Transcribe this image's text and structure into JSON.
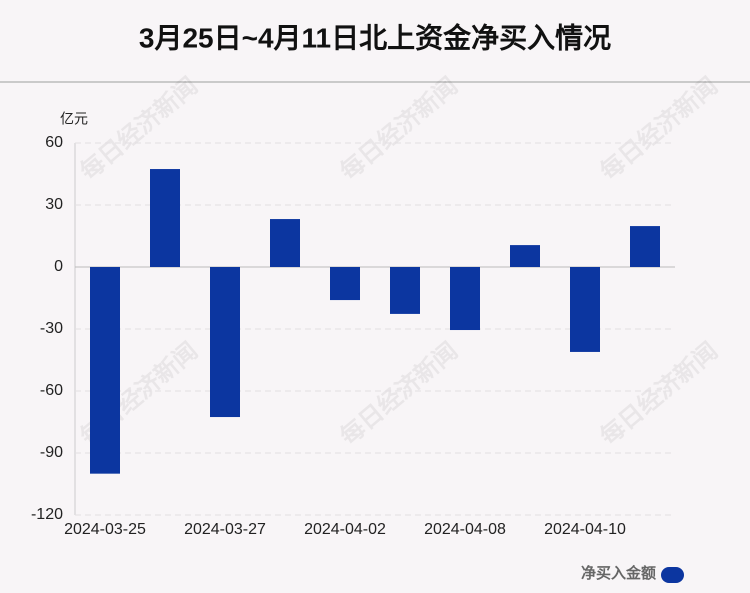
{
  "chart_data": {
    "type": "bar",
    "title": "3月25日~4月11日北上资金净买入情况",
    "y_unit": "亿元",
    "categories": [
      "2024-03-25",
      null,
      "2024-03-27",
      null,
      "2024-04-02",
      null,
      "2024-04-08",
      null,
      "2024-04-10",
      null
    ],
    "series": [
      {
        "name": "净买入金额",
        "color": "#0c36a0",
        "values": [
          -100,
          47.4,
          -72.6,
          23.2,
          -16,
          -22.7,
          -30.5,
          10.6,
          -41.1,
          19.8
        ]
      }
    ],
    "ylim": [
      -120,
      60
    ],
    "yticks": [
      -120,
      -90,
      -60,
      -30,
      0,
      30,
      60
    ],
    "grid": true,
    "legend": "bottom-right",
    "watermark": "每日经济新闻"
  }
}
